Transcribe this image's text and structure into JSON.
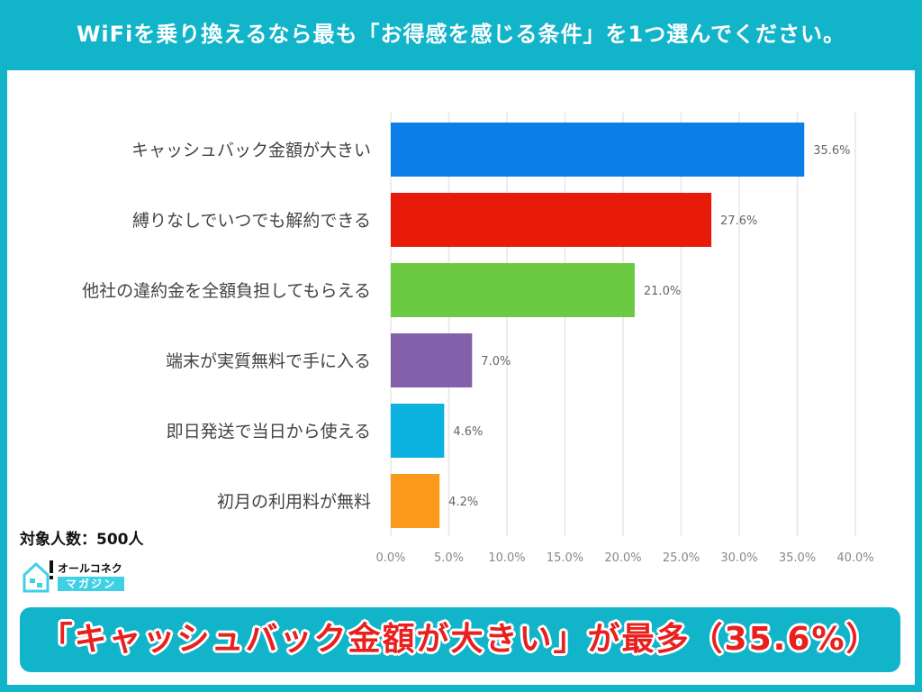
{
  "header": {
    "title": "WiFiを乗り換えるなら最も「お得感を感じる条件」を1つ選んでください。"
  },
  "chart_data": {
    "type": "bar",
    "orientation": "horizontal",
    "categories": [
      "キャッシュバック金額が大きい",
      "縛りなしでいつでも解約できる",
      "他社の違約金を全額負担してもらえる",
      "端末が実質無料で手に入る",
      "即日発送で当日から使える",
      "初月の利用料が無料"
    ],
    "values": [
      35.6,
      27.6,
      21.0,
      7.0,
      4.6,
      4.2
    ],
    "data_labels": [
      "35.6%",
      "27.6%",
      "21.0%",
      "7.0%",
      "4.6%",
      "4.2%"
    ],
    "colors": [
      "#0a7fe8",
      "#e81a0a",
      "#6cc942",
      "#8360aa",
      "#0bb1df",
      "#fb9a1a"
    ],
    "xlim": [
      0,
      40
    ],
    "xticks": [
      "0.0%",
      "5.0%",
      "10.0%",
      "15.0%",
      "20.0%",
      "25.0%",
      "30.0%",
      "35.0%",
      "40.0%"
    ],
    "grid": true,
    "title": "",
    "xlabel": "",
    "ylabel": ""
  },
  "sample": "対象人数：500人",
  "logo": {
    "top": "オールコネクト",
    "bottom": "マガジン"
  },
  "banner": "「キャッシュバック金額が大きい」が最多（35.6%）"
}
